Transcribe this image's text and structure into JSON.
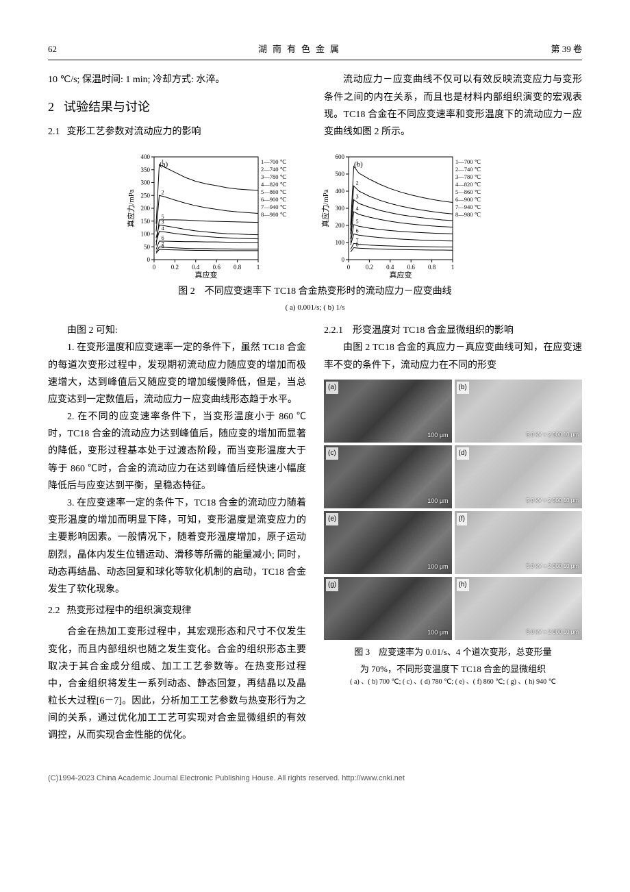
{
  "header": {
    "page": "62",
    "journal": "湖南有色金属",
    "volume": "第 39 卷"
  },
  "topline": "10 ℃/s; 保温时间: 1 min; 冷却方式: 水淬。",
  "sec2": {
    "num": "2",
    "title": "试验结果与讨论"
  },
  "sec21": {
    "num": "2.1",
    "title": "变形工艺参数对流动应力的影响"
  },
  "rightIntro": "流动应力－应变曲线不仅可以有效反映流变应力与变形条件之间的内在关系，而且也是材料内部组织演变的宏观表现。TC18 合金在不同应变速率和变形温度下的流动应力－应变曲线如图 2 所示。",
  "fig2": {
    "caption": "图 2　不同应变速率下 TC18 合金热变形时的流动应力－应变曲线",
    "sub": "( a) 0.001/s; ( b) 1/s",
    "chartA": {
      "type": "line",
      "tag": "(a)",
      "xlabel": "真应变",
      "ylabel": "真应力/mPa",
      "xlim": [
        0,
        1.0
      ],
      "ylim": [
        0,
        400
      ],
      "xtick_step": 0.2,
      "ytick_step": 50,
      "legend": [
        "1—700 ℃",
        "2—740 ℃",
        "3—780 ℃",
        "4—820 ℃",
        "5—860 ℃",
        "6—900 ℃",
        "7—940 ℃",
        "8—980 ℃"
      ],
      "line_colors": [
        "#000",
        "#000",
        "#000",
        "#000",
        "#000",
        "#000",
        "#000",
        "#000"
      ],
      "background_color": "#ffffff",
      "grid": false,
      "font_size": 10,
      "series": [
        {
          "label": "1",
          "x": [
            0.02,
            0.05,
            0.1,
            0.2,
            0.3,
            0.4,
            0.5,
            0.6,
            0.7,
            0.8,
            0.9,
            1.0
          ],
          "y": [
            140,
            370,
            360,
            340,
            320,
            305,
            295,
            288,
            280,
            275,
            272,
            270
          ]
        },
        {
          "label": "2",
          "x": [
            0.02,
            0.05,
            0.1,
            0.2,
            0.3,
            0.4,
            0.5,
            0.6,
            0.7,
            0.8,
            0.9,
            1.0
          ],
          "y": [
            110,
            250,
            245,
            232,
            220,
            210,
            202,
            196,
            190,
            186,
            183,
            180
          ]
        },
        {
          "label": "3",
          "x": [
            0.02,
            0.05,
            0.1,
            0.2,
            0.3,
            0.4,
            0.5,
            0.6,
            0.7,
            0.8,
            0.9,
            1.0
          ],
          "y": [
            85,
            135,
            132,
            125,
            118,
            112,
            108,
            104,
            101,
            100,
            98,
            97
          ]
        },
        {
          "label": "4",
          "x": [
            0.02,
            0.05,
            0.1,
            0.2,
            0.3,
            0.4,
            0.5,
            0.6,
            0.7,
            0.8,
            0.9,
            1.0
          ],
          "y": [
            70,
            110,
            108,
            102,
            97,
            93,
            90,
            87,
            85,
            83,
            82,
            81
          ]
        },
        {
          "label": "5",
          "x": [
            0.02,
            0.05,
            0.1,
            0.2,
            0.3,
            0.4,
            0.5,
            0.6,
            0.7,
            0.8,
            0.9,
            1.0
          ],
          "y": [
            55,
            155,
            155,
            155,
            154,
            152,
            150,
            149,
            148,
            147,
            146,
            145
          ]
        },
        {
          "label": "6",
          "x": [
            0.02,
            0.05,
            0.1,
            0.2,
            0.3,
            0.4,
            0.5,
            0.6,
            0.7,
            0.8,
            0.9,
            1.0
          ],
          "y": [
            40,
            72,
            72,
            71,
            70,
            70,
            69,
            69,
            68,
            68,
            67,
            67
          ]
        },
        {
          "label": "7",
          "x": [
            0.02,
            0.05,
            0.1,
            0.2,
            0.3,
            0.4,
            0.5,
            0.6,
            0.7,
            0.8,
            0.9,
            1.0
          ],
          "y": [
            30,
            50,
            48,
            46,
            44,
            43,
            43,
            42,
            42,
            41,
            41,
            41
          ]
        },
        {
          "label": "8",
          "x": [
            0.02,
            0.05,
            0.1,
            0.2,
            0.3,
            0.4,
            0.5,
            0.6,
            0.7,
            0.8,
            0.9,
            1.0
          ],
          "y": [
            25,
            40,
            39,
            38,
            37,
            36,
            36,
            35,
            35,
            35,
            35,
            35
          ]
        }
      ]
    },
    "chartB": {
      "type": "line",
      "tag": "(b)",
      "xlabel": "真应变",
      "ylabel": "真应力/mPa",
      "xlim": [
        0,
        1.0
      ],
      "ylim": [
        0,
        600
      ],
      "xtick_step": 0.2,
      "ytick_step": 100,
      "legend": [
        "1—700 ℃",
        "2—740 ℃",
        "3—780 ℃",
        "4—820 ℃",
        "5—860 ℃",
        "6—900 ℃",
        "7—940 ℃",
        "8—980 ℃"
      ],
      "line_colors": [
        "#000",
        "#000",
        "#000",
        "#000",
        "#000",
        "#000",
        "#000",
        "#000"
      ],
      "background_color": "#ffffff",
      "grid": false,
      "font_size": 10,
      "series": [
        {
          "label": "1",
          "x": [
            0.02,
            0.05,
            0.1,
            0.2,
            0.3,
            0.4,
            0.5,
            0.6,
            0.7,
            0.8,
            0.9,
            1.0
          ],
          "y": [
            200,
            545,
            505,
            470,
            440,
            415,
            395,
            378,
            364,
            352,
            342,
            334
          ]
        },
        {
          "label": "2",
          "x": [
            0.02,
            0.05,
            0.1,
            0.2,
            0.3,
            0.4,
            0.5,
            0.6,
            0.7,
            0.8,
            0.9,
            1.0
          ],
          "y": [
            170,
            430,
            400,
            370,
            347,
            328,
            313,
            300,
            290,
            281,
            273,
            267
          ]
        },
        {
          "label": "3",
          "x": [
            0.02,
            0.05,
            0.1,
            0.2,
            0.3,
            0.4,
            0.5,
            0.6,
            0.7,
            0.8,
            0.9,
            1.0
          ],
          "y": [
            150,
            350,
            328,
            306,
            288,
            274,
            262,
            253,
            245,
            238,
            232,
            228
          ]
        },
        {
          "label": "4",
          "x": [
            0.02,
            0.05,
            0.1,
            0.2,
            0.3,
            0.4,
            0.5,
            0.6,
            0.7,
            0.8,
            0.9,
            1.0
          ],
          "y": [
            120,
            280,
            264,
            248,
            235,
            224,
            215,
            208,
            202,
            197,
            193,
            190
          ]
        },
        {
          "label": "5",
          "x": [
            0.02,
            0.05,
            0.1,
            0.2,
            0.3,
            0.4,
            0.5,
            0.6,
            0.7,
            0.8,
            0.9,
            1.0
          ],
          "y": [
            100,
            205,
            195,
            184,
            176,
            170,
            165,
            161,
            158,
            155,
            153,
            151
          ]
        },
        {
          "label": "6",
          "x": [
            0.02,
            0.05,
            0.1,
            0.2,
            0.3,
            0.4,
            0.5,
            0.6,
            0.7,
            0.8,
            0.9,
            1.0
          ],
          "y": [
            85,
            150,
            143,
            135,
            129,
            124,
            120,
            117,
            114,
            112,
            110,
            109
          ]
        },
        {
          "label": "7",
          "x": [
            0.02,
            0.05,
            0.1,
            0.2,
            0.3,
            0.4,
            0.5,
            0.6,
            0.7,
            0.8,
            0.9,
            1.0
          ],
          "y": [
            60,
            95,
            90,
            85,
            82,
            80,
            78,
            77,
            76,
            75,
            74,
            74
          ]
        },
        {
          "label": "8",
          "x": [
            0.02,
            0.05,
            0.1,
            0.2,
            0.3,
            0.4,
            0.5,
            0.6,
            0.7,
            0.8,
            0.9,
            1.0
          ],
          "y": [
            45,
            70,
            67,
            64,
            62,
            60,
            59,
            58,
            57,
            56,
            56,
            55
          ]
        }
      ]
    }
  },
  "afterFig2": "由图 2 可知:",
  "item1": "1. 在变形温度和应变速率一定的条件下，虽然 TC18 合金的每道次变形过程中，发现期初流动应力随应变的增加而极速增大，达到峰值后又随应变的增加缓慢降低，但是，当总应变达到一定数值后，流动应力－应变曲线形态趋于水平。",
  "item2": "2. 在不同的应变速率条件下，当变形温度小于 860 ℃时，TC18 合金的流动应力达到峰值后，随应变的增加而显著的降低，变形过程基本处于过渡态阶段，而当变形温度大于等于 860 ℃时，合金的流动应力在达到峰值后经快速小幅度降低后与应变达到平衡，呈稳态特征。",
  "item3": "3. 在应变速率一定的条件下，TC18 合金的流动应力随着变形温度的增加而明显下降，可知，变形温度是流变应力的主要影响因素。一般情况下，随着变形温度增加，原子运动剧烈，晶体内发生位错运动、滑移等所需的能量减小; 同时，动态再结晶、动态回复和球化等软化机制的启动，TC18 合金发生了软化现象。",
  "sec22": {
    "num": "2.2",
    "title": "热变形过程中的组织演变规律"
  },
  "p22": "合金在热加工变形过程中，其宏观形态和尺寸不仅发生变化，而且内部组织也随之发生变化。合金的组织形态主要取决于其合金成分组成、加工工艺参数等。在热变形过程中，合金组织将发生一系列动态、静态回复，再结晶以及晶粒长大过程[6－7]。因此，分析加工工艺参数与热变形行为之间的关系，通过优化加工工艺可实现对合金显微组织的有效调控，从而实现合金性能的优化。",
  "sec221": {
    "num": "2.2.1",
    "title": "形变温度对 TC18 合金显微组织的影响"
  },
  "p221": "由图 2 TC18 合金的真应力－真应变曲线可知，在应变速率不变的条件下，流动应力在不同的形变",
  "fig3": {
    "caption1": "图 3　应变速率为 0.01/s、4 个道次变形，总变形量",
    "caption2": "为 70%，不同形变温度下 TC18 合金的显微组织",
    "sub": "( a) 、( b) 700 ℃; ( c) 、( d) 780 ℃; ( e) 、( f) 860 ℃; ( g) 、( h) 940 ℃",
    "panels": [
      {
        "tag": "(a)",
        "scale": "100 μm",
        "light": false
      },
      {
        "tag": "(b)",
        "scale": "5.0 kV  × 2 000  10 μm",
        "light": true
      },
      {
        "tag": "(c)",
        "scale": "100 μm",
        "light": false
      },
      {
        "tag": "(d)",
        "scale": "5.0 kV  × 2 000  10 μm",
        "light": true
      },
      {
        "tag": "(e)",
        "scale": "100 μm",
        "light": false
      },
      {
        "tag": "(f)",
        "scale": "5.0 kV  × 2 000  10 μm",
        "light": true
      },
      {
        "tag": "(g)",
        "scale": "100 μm",
        "light": false
      },
      {
        "tag": "(h)",
        "scale": "5.0 kV  × 2 000  10 μm",
        "light": true
      }
    ]
  },
  "footer": "(C)1994-2023 China Academic Journal Electronic Publishing House. All rights reserved.    http://www.cnki.net"
}
